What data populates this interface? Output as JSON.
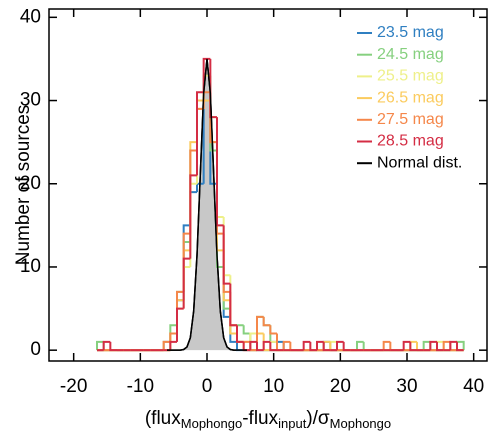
{
  "chart_data": {
    "type": "histogram",
    "ylabel": "Number of sources",
    "xlabel_parts": [
      "(flux",
      "Mophongo",
      "-flux",
      "input",
      ")/σ",
      "Mophongo"
    ],
    "xlim": [
      -23.7,
      42
    ],
    "ylim": [
      -1.3,
      41
    ],
    "xticks": [
      -20,
      -10,
      0,
      10,
      20,
      30,
      40
    ],
    "yticks": [
      0,
      10,
      20,
      30,
      40
    ],
    "legend": "upper right",
    "bins": [
      -16.5,
      -15.5,
      -14.5,
      -13.5,
      -12.5,
      -11.5,
      -10.5,
      -9.5,
      -8.5,
      -7.5,
      -6.5,
      -5.5,
      -4.5,
      -3.5,
      -2.5,
      -1.5,
      -0.5,
      0.5,
      1.5,
      2.5,
      3.5,
      4.5,
      5.5,
      6.5,
      7.5,
      8.5,
      9.5,
      10.5,
      11.5,
      12.5,
      13.5,
      14.5,
      15.5,
      16.5,
      17.5,
      18.5,
      19.5,
      20.5,
      21.5,
      22.5,
      23.5,
      24.5,
      25.5,
      26.5,
      27.5,
      28.5,
      29.5,
      30.5,
      31.5,
      32.5,
      33.5,
      34.5,
      35.5,
      36.5,
      37.5,
      38.5
    ],
    "series": [
      {
        "name": "23.5 mag",
        "color": "#2f7fc1",
        "values": [
          0,
          0,
          0,
          0,
          0,
          0,
          0,
          0,
          0,
          0,
          1,
          2,
          6,
          15,
          19,
          20,
          33,
          20,
          10,
          4,
          1,
          0,
          0,
          0,
          0,
          0,
          0,
          1,
          0,
          0,
          0,
          0,
          0,
          0,
          1,
          0,
          0,
          0,
          0,
          0,
          0,
          0,
          0,
          0,
          0,
          0,
          0,
          0,
          0,
          0,
          0,
          0,
          0,
          0,
          0
        ]
      },
      {
        "name": "24.5 mag",
        "color": "#86d07f",
        "values": [
          1,
          0,
          0,
          0,
          0,
          0,
          0,
          0,
          0,
          0,
          0,
          3,
          7,
          13,
          24,
          30,
          30,
          24,
          10,
          5,
          2,
          3,
          2,
          0,
          4,
          3,
          1,
          0,
          0,
          0,
          0,
          0,
          0,
          0,
          0,
          0,
          0,
          0,
          0,
          1,
          0,
          0,
          0,
          0,
          0,
          0,
          0,
          0,
          0,
          1,
          0,
          0,
          0,
          0,
          1
        ]
      },
      {
        "name": "25.5 mag",
        "color": "#eef08a",
        "values": [
          0,
          0,
          0,
          0,
          0,
          0,
          0,
          0,
          0,
          0,
          1,
          2,
          5,
          10,
          20,
          29,
          33,
          28,
          16,
          9,
          3,
          1,
          1,
          2,
          0,
          0,
          1,
          0,
          0,
          0,
          0,
          0,
          0,
          0,
          0,
          1,
          0,
          0,
          0,
          0,
          0,
          0,
          0,
          0,
          0,
          0,
          0,
          0,
          0,
          0,
          0,
          1,
          0,
          0,
          0
        ]
      },
      {
        "name": "26.5 mag",
        "color": "#fbcb5e",
        "values": [
          0,
          0,
          0,
          0,
          0,
          0,
          0,
          0,
          0,
          0,
          0,
          2,
          6,
          12,
          25,
          30,
          30,
          25,
          12,
          6,
          2,
          1,
          0,
          0,
          2,
          0,
          0,
          0,
          0,
          0,
          0,
          0,
          0,
          0,
          1,
          0,
          0,
          0,
          0,
          0,
          0,
          0,
          0,
          0,
          0,
          0,
          0,
          1,
          0,
          0,
          0,
          0,
          0,
          0,
          0
        ]
      },
      {
        "name": "27.5 mag",
        "color": "#f5874a",
        "values": [
          0,
          0,
          0,
          0,
          0,
          0,
          0,
          0,
          0,
          0,
          1,
          2,
          7,
          14,
          24,
          29,
          31,
          25,
          14,
          7,
          3,
          1,
          1,
          0,
          4,
          3,
          2,
          0,
          1,
          0,
          0,
          0,
          0,
          0,
          0,
          0,
          0,
          0,
          0,
          0,
          0,
          0,
          0,
          1,
          0,
          0,
          0,
          0,
          0,
          0,
          0,
          0,
          1,
          0,
          0
        ]
      },
      {
        "name": "28.5 mag",
        "color": "#d42d44",
        "values": [
          0,
          1,
          0,
          0,
          0,
          0,
          0,
          0,
          0,
          0,
          0,
          1,
          5,
          11,
          21,
          31,
          35,
          28,
          15,
          8,
          3,
          1,
          0,
          1,
          0,
          1,
          0,
          0,
          0,
          0,
          0,
          1,
          0,
          1,
          0,
          0,
          1,
          0,
          0,
          0,
          0,
          0,
          0,
          0,
          0,
          0,
          1,
          0,
          0,
          0,
          1,
          0,
          0,
          1,
          0
        ]
      },
      {
        "name": "Normal dist.",
        "color": "#000000",
        "fill": "#c8c8c8",
        "type": "line",
        "x": [
          -6,
          -5,
          -4,
          -3.5,
          -3,
          -2.5,
          -2,
          -1.5,
          -1,
          -0.5,
          0,
          0.5,
          1,
          1.5,
          2,
          2.5,
          3,
          3.5,
          4,
          5,
          6
        ],
        "values": [
          0,
          0,
          0.01,
          0.08,
          0.39,
          1.5,
          4.7,
          11.4,
          21.2,
          30.9,
          35,
          30.9,
          21.2,
          11.4,
          4.7,
          1.5,
          0.39,
          0.08,
          0.01,
          0,
          0
        ]
      }
    ]
  }
}
